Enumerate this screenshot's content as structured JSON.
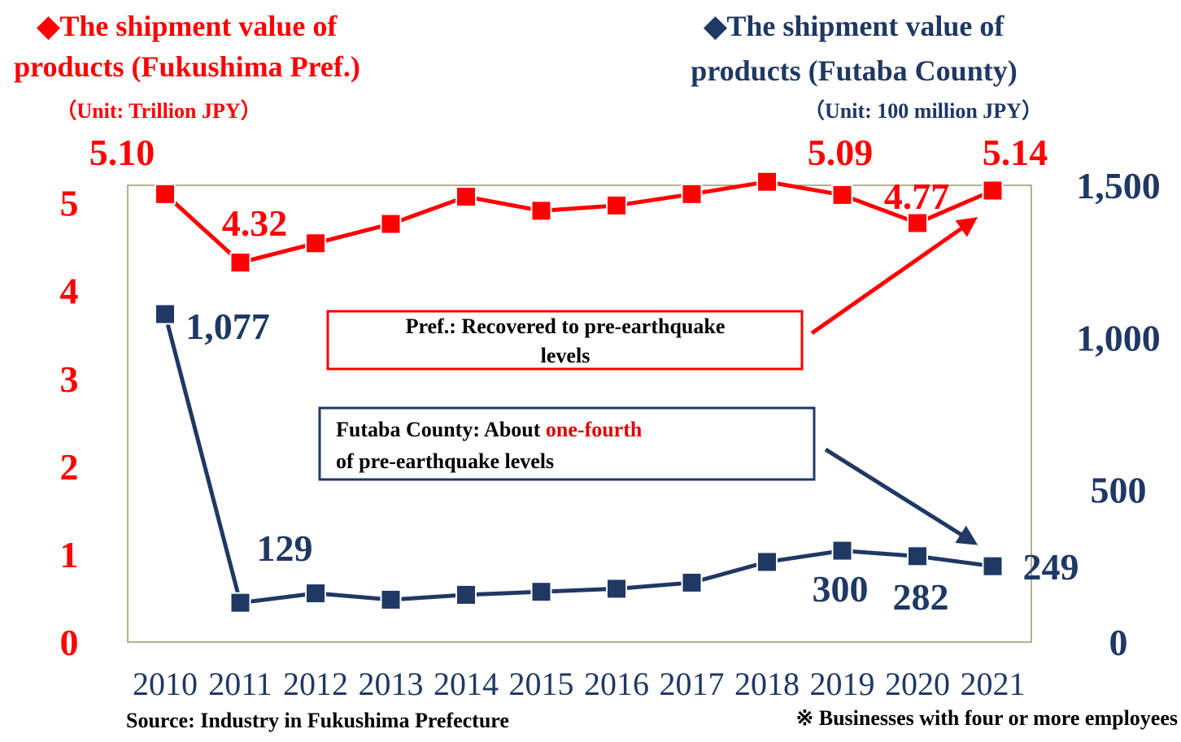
{
  "chart_data": {
    "type": "line",
    "title": "◆The shipment value of products  (Fukushima Pref.)",
    "unit_left": "（Unit: Trillion JPY）",
    "title2": "◆The shipment value of products (Futaba County)",
    "unit_right": "（Unit: 100 million JPY）",
    "categories": [
      "2010",
      "2011",
      "2012",
      "2013",
      "2014",
      "2015",
      "2016",
      "2017",
      "2018",
      "2019",
      "2020",
      "2021"
    ],
    "ylim": [
      0,
      5.2
    ],
    "yticks": [
      0,
      1,
      2,
      3,
      4,
      5
    ],
    "y2lim": [
      0,
      1500
    ],
    "y2ticks": [
      0,
      500,
      {
        "value": 1000,
        "label": "1,000"
      },
      {
        "value": 1500,
        "label": "1,500"
      }
    ],
    "series": [
      {
        "name": "The shipment value of products (Fukushima Pref.)",
        "color": "#ff0000",
        "values": [
          5.1,
          4.32,
          4.54,
          4.76,
          5.07,
          4.91,
          4.97,
          5.1,
          5.24,
          5.09,
          4.77,
          5.14
        ],
        "value_labels": [
          "5.10",
          "4.32",
          null,
          null,
          null,
          null,
          null,
          null,
          null,
          "5.09",
          "4.77",
          "5.14"
        ]
      },
      {
        "name": "The shipment value of products (Futaba County)",
        "color": "#1f3864",
        "axis": "y2",
        "values": [
          1077,
          129,
          160,
          139,
          155,
          165,
          175,
          195,
          263,
          300,
          282,
          249
        ],
        "value_labels": [
          "1,077",
          "129",
          null,
          null,
          null,
          null,
          null,
          null,
          null,
          "300",
          "282",
          "249"
        ]
      }
    ],
    "annotations": [
      {
        "text": "Pref.: Recovered to pre-earthquake levels"
      },
      {
        "text_parts": [
          "Futaba County: About ",
          "one-fourth",
          " of  pre-earthquake levels"
        ]
      }
    ],
    "source": "Source: Industry in Fukushima Prefecture",
    "note": "※ Businesses with four or more employees"
  }
}
